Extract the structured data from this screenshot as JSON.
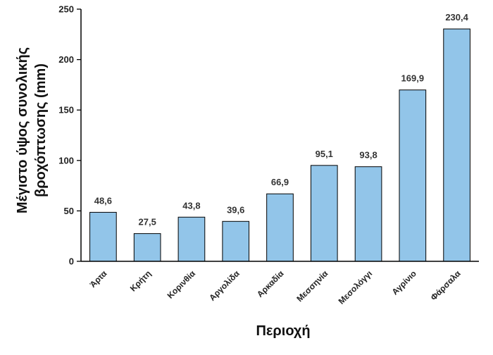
{
  "chart_data": {
    "type": "bar",
    "xlabel": "Περιοχή",
    "ylabel_lines": [
      "Μέγιστο ύψος συνολικής",
      "βροχόπτωσης (mm)"
    ],
    "categories": [
      "Άρτα",
      "Κρήτη",
      "Κορινθία",
      "Αργολίδα",
      "Αρκαδία",
      "Μεσσηνία",
      "Μεσολόγγι",
      "Αγρίνιο",
      "Φάρσαλα"
    ],
    "values": [
      48.6,
      27.5,
      43.8,
      39.6,
      66.9,
      95.1,
      93.8,
      169.9,
      230.4
    ],
    "value_labels": [
      "48,6",
      "27,5",
      "43,8",
      "39,6",
      "66,9",
      "95,1",
      "93,8",
      "169,9",
      "230,4"
    ],
    "ylim": [
      0,
      250
    ],
    "yticks": [
      0,
      50,
      100,
      150,
      200,
      250
    ],
    "grid": false,
    "legend": "none",
    "bar_color": "#92C5E9",
    "bar_edge_color": "#000000"
  }
}
